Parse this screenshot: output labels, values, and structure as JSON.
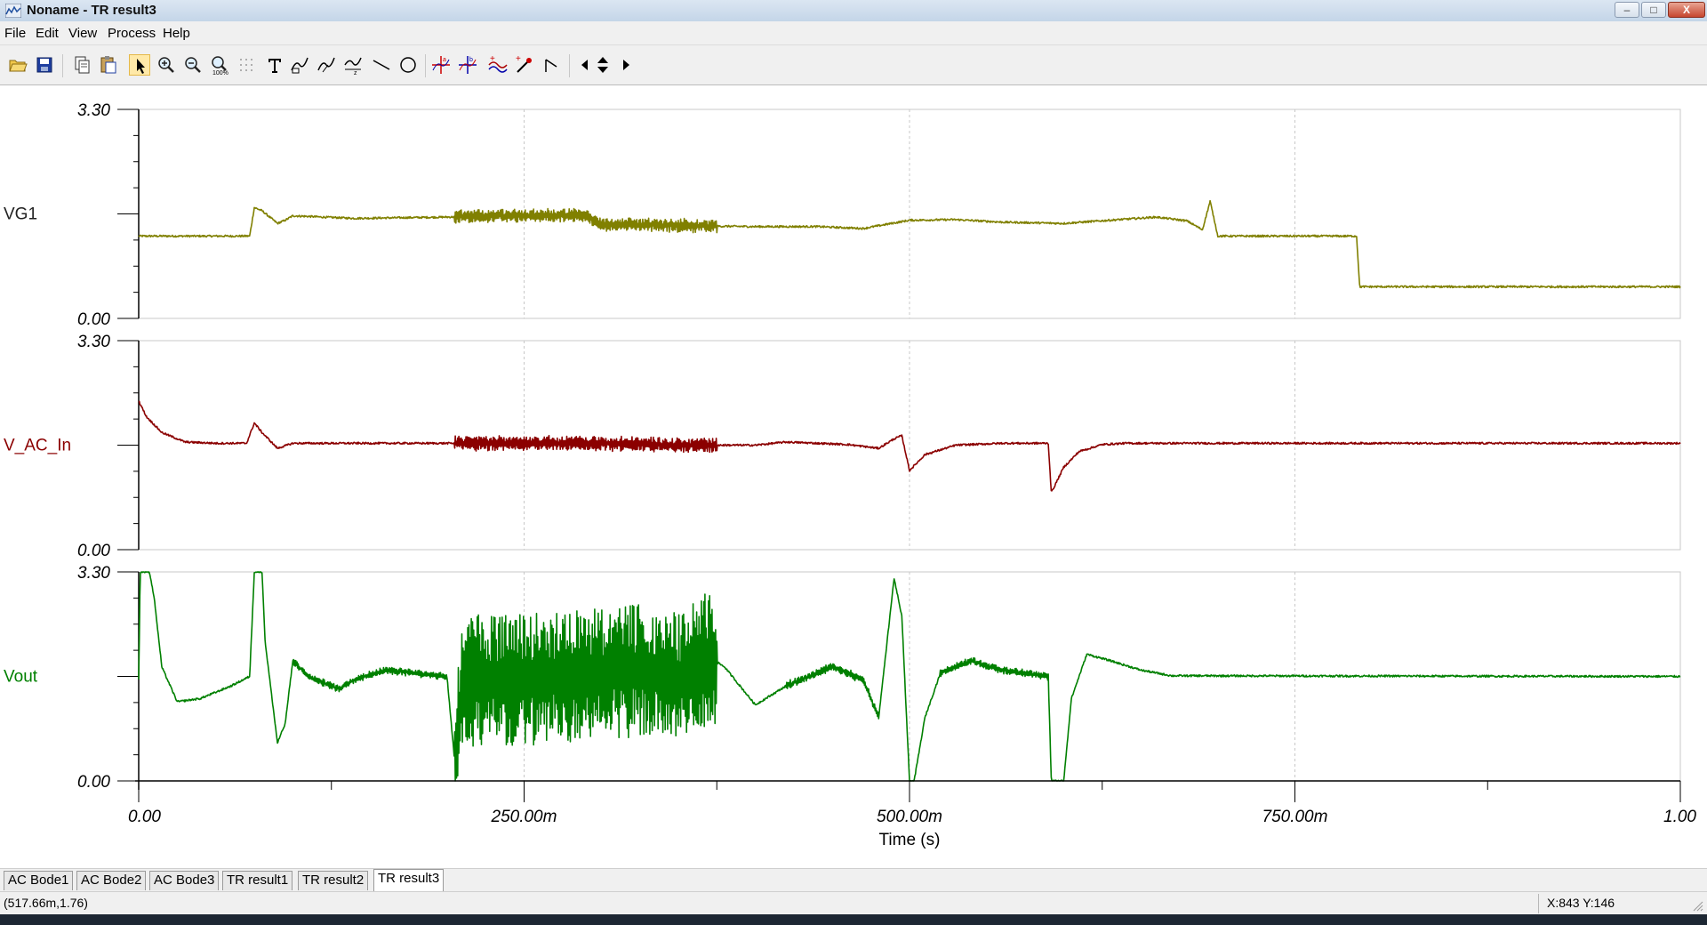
{
  "window": {
    "title": "Noname - TR result3",
    "icon": "plot-app-icon",
    "controls": {
      "minimize": "–",
      "maximize": "□",
      "close": "X"
    }
  },
  "menu": [
    "File",
    "Edit",
    "View",
    "Process",
    "Help"
  ],
  "toolbar": [
    "open-folder-icon",
    "save-icon",
    "copy-icon",
    "paste-icon",
    "pointer-icon",
    "zoom-in-icon",
    "zoom-out-icon",
    "zoom-100-icon",
    "grid-icon",
    "text-icon",
    "curve-label-icon",
    "curve-label2-icon",
    "curve-label3-icon",
    "line-icon",
    "circle-icon",
    "cursor-a-icon",
    "cursor-b-icon",
    "add-curve-icon",
    "marker-icon",
    "arrow-icon",
    "nav-left-icon",
    "nav-updown-icon",
    "nav-right-icon"
  ],
  "colors": {
    "vg1": "#808000",
    "vac": "#8b0000",
    "vout": "#008000",
    "grid": "#c8c8c8",
    "axis": "#000000"
  },
  "chart_data": {
    "type": "line",
    "xlabel": "Time (s)",
    "x_ticks": [
      "0.00",
      "250.00m",
      "500.00m",
      "750.00m",
      "1.00"
    ],
    "xlim": [
      0,
      1
    ],
    "panels": [
      {
        "name": "VG1",
        "ylim": [
          0,
          3.3
        ],
        "y_ticks": [
          "3.30",
          "0.00"
        ],
        "color": "#808000",
        "points": [
          [
            0,
            1.3
          ],
          [
            0.072,
            1.3
          ],
          [
            0.075,
            1.75
          ],
          [
            0.08,
            1.7
          ],
          [
            0.09,
            1.5
          ],
          [
            0.095,
            1.55
          ],
          [
            0.1,
            1.62
          ],
          [
            0.14,
            1.58
          ],
          [
            0.2,
            1.6
          ],
          [
            0.25,
            1.63
          ],
          [
            0.29,
            1.62
          ],
          [
            0.3,
            1.48
          ],
          [
            0.33,
            1.48
          ],
          [
            0.36,
            1.46
          ],
          [
            0.4,
            1.45
          ],
          [
            0.44,
            1.45
          ],
          [
            0.47,
            1.42
          ],
          [
            0.5,
            1.55
          ],
          [
            0.53,
            1.56
          ],
          [
            0.56,
            1.52
          ],
          [
            0.6,
            1.5
          ],
          [
            0.63,
            1.55
          ],
          [
            0.66,
            1.6
          ],
          [
            0.68,
            1.54
          ],
          [
            0.69,
            1.4
          ],
          [
            0.695,
            1.85
          ],
          [
            0.7,
            1.3
          ],
          [
            0.79,
            1.3
          ],
          [
            0.792,
            0.5
          ],
          [
            1.0,
            0.5
          ]
        ],
        "noise": [
          [
            0.205,
            0.375,
            0.1
          ]
        ]
      },
      {
        "name": "V_AC_In",
        "ylim": [
          0,
          3.3
        ],
        "y_ticks": [
          "3.30",
          "0.00"
        ],
        "color": "#8b0000",
        "points": [
          [
            0,
            2.35
          ],
          [
            0.005,
            2.1
          ],
          [
            0.015,
            1.85
          ],
          [
            0.03,
            1.7
          ],
          [
            0.05,
            1.68
          ],
          [
            0.07,
            1.68
          ],
          [
            0.075,
            2.0
          ],
          [
            0.08,
            1.85
          ],
          [
            0.09,
            1.6
          ],
          [
            0.1,
            1.68
          ],
          [
            0.15,
            1.68
          ],
          [
            0.2,
            1.68
          ],
          [
            0.3,
            1.68
          ],
          [
            0.35,
            1.65
          ],
          [
            0.4,
            1.65
          ],
          [
            0.42,
            1.7
          ],
          [
            0.46,
            1.66
          ],
          [
            0.48,
            1.6
          ],
          [
            0.49,
            1.75
          ],
          [
            0.495,
            1.8
          ],
          [
            0.5,
            1.25
          ],
          [
            0.51,
            1.5
          ],
          [
            0.53,
            1.65
          ],
          [
            0.56,
            1.68
          ],
          [
            0.59,
            1.68
          ],
          [
            0.592,
            0.9
          ],
          [
            0.6,
            1.3
          ],
          [
            0.61,
            1.55
          ],
          [
            0.625,
            1.66
          ],
          [
            0.64,
            1.68
          ],
          [
            1.0,
            1.68
          ]
        ],
        "noise": [
          [
            0.205,
            0.375,
            0.11
          ]
        ]
      },
      {
        "name": "Vout",
        "ylim": [
          0,
          3.3
        ],
        "y_ticks": [
          "3.30",
          "0.00"
        ],
        "color": "#008000",
        "points": [
          [
            0,
            1.6
          ],
          [
            0.001,
            3.3
          ],
          [
            0.007,
            3.3
          ],
          [
            0.01,
            2.9
          ],
          [
            0.015,
            1.8
          ],
          [
            0.025,
            1.25
          ],
          [
            0.04,
            1.3
          ],
          [
            0.06,
            1.5
          ],
          [
            0.072,
            1.65
          ],
          [
            0.075,
            3.3
          ],
          [
            0.08,
            3.3
          ],
          [
            0.082,
            2.2
          ],
          [
            0.09,
            0.6
          ],
          [
            0.095,
            0.9
          ],
          [
            0.1,
            1.9
          ],
          [
            0.11,
            1.65
          ],
          [
            0.12,
            1.55
          ],
          [
            0.13,
            1.45
          ],
          [
            0.14,
            1.6
          ],
          [
            0.16,
            1.75
          ],
          [
            0.18,
            1.7
          ],
          [
            0.2,
            1.65
          ],
          [
            0.205,
            0.3
          ],
          [
            0.21,
            1.6
          ],
          [
            0.25,
            1.6
          ],
          [
            0.3,
            1.7
          ],
          [
            0.33,
            1.75
          ],
          [
            0.35,
            1.6
          ],
          [
            0.37,
            1.95
          ],
          [
            0.38,
            1.8
          ],
          [
            0.39,
            1.5
          ],
          [
            0.4,
            1.2
          ],
          [
            0.42,
            1.5
          ],
          [
            0.45,
            1.8
          ],
          [
            0.47,
            1.6
          ],
          [
            0.48,
            1.0
          ],
          [
            0.49,
            3.2
          ],
          [
            0.495,
            2.6
          ],
          [
            0.5,
            0.0
          ],
          [
            0.503,
            0.0
          ],
          [
            0.51,
            1.0
          ],
          [
            0.52,
            1.7
          ],
          [
            0.54,
            1.9
          ],
          [
            0.56,
            1.75
          ],
          [
            0.59,
            1.65
          ],
          [
            0.592,
            0.0
          ],
          [
            0.6,
            0.0
          ],
          [
            0.605,
            1.3
          ],
          [
            0.615,
            2.0
          ],
          [
            0.63,
            1.9
          ],
          [
            0.65,
            1.75
          ],
          [
            0.67,
            1.66
          ],
          [
            1.0,
            1.65
          ]
        ],
        "noise": [
          [
            0.205,
            0.375,
            1.05
          ],
          [
            0.1,
            0.2,
            0.05
          ],
          [
            0.42,
            0.48,
            0.06
          ],
          [
            0.52,
            0.59,
            0.05
          ]
        ]
      }
    ]
  },
  "tabs": [
    "AC Bode1",
    "AC Bode2",
    "AC Bode3",
    "TR result1",
    "TR result2",
    "TR result3"
  ],
  "active_tab": "TR result3",
  "status": {
    "cursor_value": "(517.66m,1.76)",
    "pixel": "X:843  Y:146"
  }
}
